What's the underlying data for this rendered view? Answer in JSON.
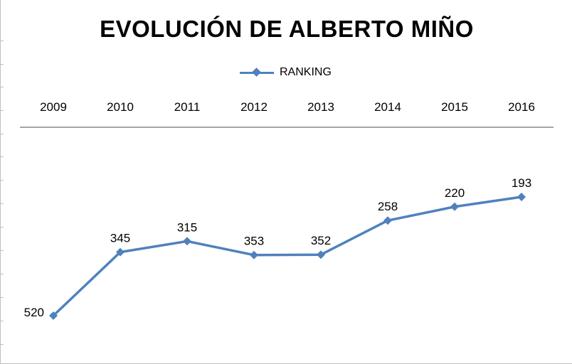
{
  "chart_data": {
    "type": "line",
    "title": "EVOLUCIÓN DE ALBERTO MIÑO",
    "categories": [
      "2009",
      "2010",
      "2011",
      "2012",
      "2013",
      "2014",
      "2015",
      "2016"
    ],
    "series": [
      {
        "name": "RANKING",
        "values": [
          520,
          345,
          315,
          353,
          352,
          258,
          220,
          193
        ],
        "color": "#4f81bd",
        "marker": "diamond"
      }
    ],
    "data_labels": [
      "520",
      "345",
      "315",
      "353",
      "352",
      "258",
      "220",
      "193"
    ],
    "y_reversed": true,
    "legend_position": "top",
    "x_axis_position": "top",
    "grid": false
  }
}
